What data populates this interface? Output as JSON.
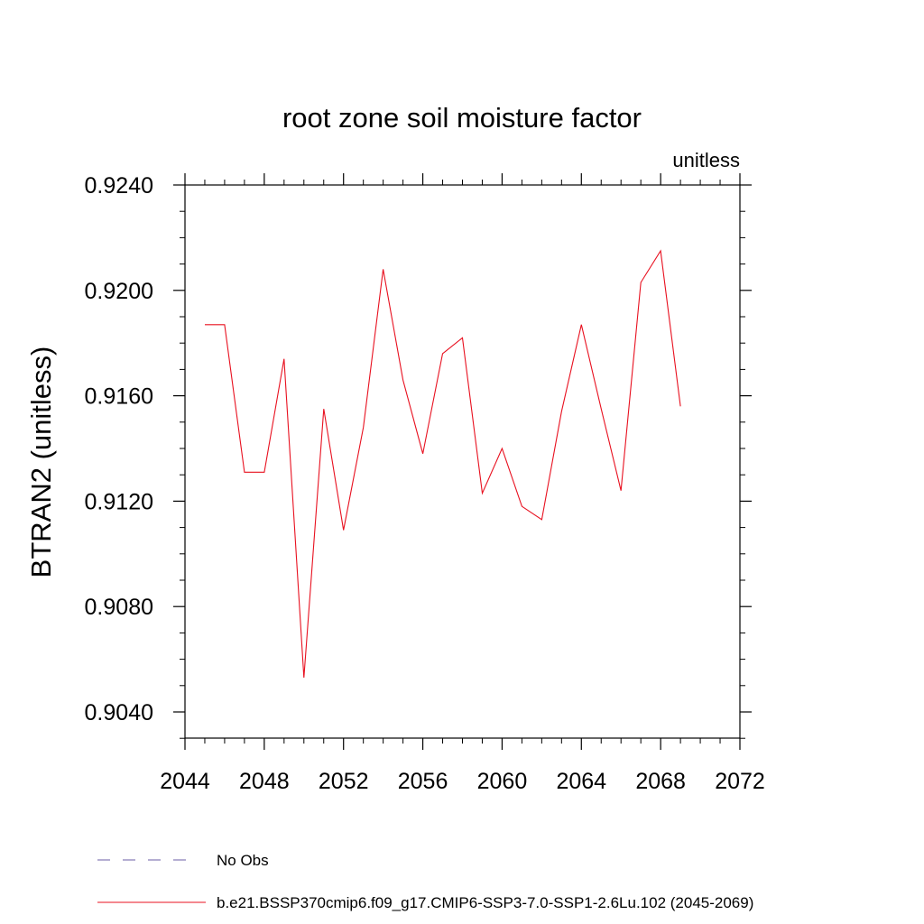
{
  "chart_data": {
    "type": "line",
    "title": "root zone soil moisture factor",
    "units_label": "unitless",
    "ylabel": "BTRAN2  (unitless)",
    "xlabel": "",
    "xlim": [
      2044,
      2072
    ],
    "ylim": [
      0.903,
      0.9245
    ],
    "x_ticks": [
      "2044",
      "2048",
      "2052",
      "2056",
      "2060",
      "2064",
      "2068",
      "2072"
    ],
    "y_ticks": [
      "0.9040",
      "0.9080",
      "0.9120",
      "0.9160",
      "0.9200",
      "0.9240"
    ],
    "grid": false,
    "legend_position": "bottom",
    "legend": [
      {
        "label": "No Obs",
        "style": "dashed",
        "color": "#6b5ca5"
      },
      {
        "label": "b.e21.BSSP370cmip6.f09_g17.CMIP6-SSP3-7.0-SSP1-2.6Lu.102 (2045-2069)",
        "style": "solid",
        "color": "#e8101f"
      }
    ],
    "series": [
      {
        "name": "b.e21.BSSP370cmip6.f09_g17.CMIP6-SSP3-7.0-SSP1-2.6Lu.102 (2045-2069)",
        "color": "#e8101f",
        "x": [
          2045,
          2046,
          2047,
          2048,
          2049,
          2050,
          2051,
          2052,
          2053,
          2054,
          2055,
          2056,
          2057,
          2058,
          2059,
          2060,
          2061,
          2062,
          2063,
          2064,
          2065,
          2066,
          2067,
          2068,
          2069
        ],
        "y": [
          0.9187,
          0.9187,
          0.9131,
          0.9131,
          0.9174,
          0.9053,
          0.9155,
          0.9109,
          0.9148,
          0.9208,
          0.9166,
          0.9138,
          0.9176,
          0.9182,
          0.9123,
          0.914,
          0.9118,
          0.9113,
          0.9154,
          0.9187,
          0.9155,
          0.9124,
          0.9203,
          0.9215,
          0.9156
        ]
      }
    ]
  }
}
